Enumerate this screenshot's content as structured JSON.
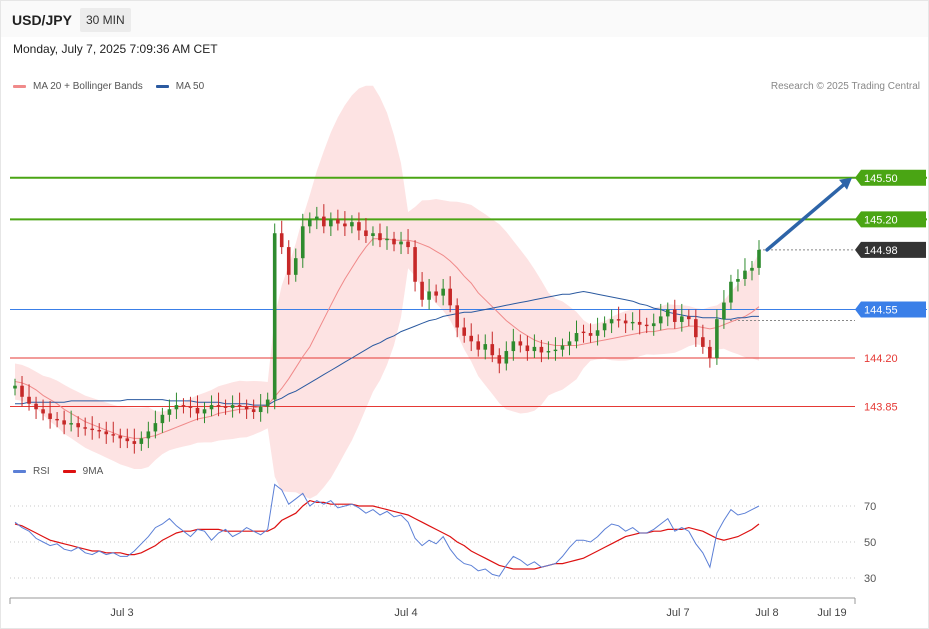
{
  "header": {
    "pair": "USD/JPY",
    "timeframe": "30 MIN"
  },
  "datetime": "Monday, July 7, 2025 7:09:36 AM CET",
  "legend_main": [
    {
      "label": "MA 20 + Bollinger Bands",
      "color": "#f08a8a"
    },
    {
      "label": "MA 50",
      "color": "#2b5aa0"
    }
  ],
  "legend_rsi": [
    {
      "label": "RSI",
      "color": "#5b7fd6"
    },
    {
      "label": "9MA",
      "color": "#dd1111"
    }
  ],
  "copyright": "Research © 2025 Trading Central",
  "colors": {
    "up": "#2e8b2e",
    "down": "#c62828",
    "resistance": "#4aa514",
    "pivot": "#3a7fe8",
    "support": "#e53935",
    "last": "#333333",
    "bands": "#fde3e3",
    "arrow": "#2d64a8"
  },
  "chart_data": [
    {
      "type": "candlestick",
      "symbol": "USD/JPY",
      "timeframe": "30 MIN",
      "ylim": [
        143.25,
        146.0
      ],
      "xlabels": [
        "Jul 3",
        "Jul 4",
        "Jul 7",
        "Jul 8",
        "Jul 19"
      ],
      "closes": [
        144.0,
        143.92,
        143.87,
        143.83,
        143.8,
        143.76,
        143.75,
        143.72,
        143.73,
        143.7,
        143.69,
        143.68,
        143.67,
        143.65,
        143.64,
        143.62,
        143.6,
        143.58,
        143.62,
        143.67,
        143.73,
        143.79,
        143.83,
        143.86,
        143.85,
        143.84,
        143.8,
        143.83,
        143.86,
        143.85,
        143.84,
        143.86,
        143.85,
        143.83,
        143.81,
        143.85,
        143.9,
        145.1,
        145.0,
        144.8,
        144.92,
        145.15,
        145.2,
        145.22,
        145.15,
        145.2,
        145.17,
        145.15,
        145.18,
        145.12,
        145.08,
        145.1,
        145.05,
        145.06,
        145.02,
        145.04,
        145.0,
        144.75,
        144.62,
        144.68,
        144.65,
        144.7,
        144.58,
        144.42,
        144.36,
        144.32,
        144.26,
        144.3,
        144.22,
        144.16,
        144.25,
        144.32,
        144.29,
        144.25,
        144.28,
        144.24,
        144.25,
        144.26,
        144.29,
        144.32,
        144.38,
        144.38,
        144.36,
        144.4,
        144.45,
        144.48,
        144.47,
        144.45,
        144.46,
        144.44,
        144.43,
        144.45,
        144.5,
        144.55,
        144.46,
        144.5,
        144.48,
        144.35,
        144.28,
        144.2,
        144.48,
        144.6,
        144.75,
        144.77,
        144.83,
        144.85,
        144.98
      ],
      "series": [
        {
          "name": "MA 20",
          "values": [
            144.03,
            144.02,
            144.0,
            143.97,
            143.93,
            143.9,
            143.87,
            143.83,
            143.8,
            143.77,
            143.74,
            143.72,
            143.7,
            143.68,
            143.66,
            143.64,
            143.63,
            143.62,
            143.62,
            143.63,
            143.64,
            143.66,
            143.68,
            143.7,
            143.72,
            143.74,
            143.76,
            143.77,
            143.78,
            143.8,
            143.81,
            143.82,
            143.83,
            143.83,
            143.84,
            143.85,
            143.86,
            143.92,
            143.98,
            144.05,
            144.13,
            144.21,
            144.28,
            144.38,
            144.48,
            144.58,
            144.68,
            144.77,
            144.85,
            144.93,
            145.0,
            145.06,
            145.06,
            145.06,
            145.05,
            145.05,
            145.05,
            145.04,
            145.02,
            145.0,
            144.97,
            144.94,
            144.9,
            144.85,
            144.79,
            144.74,
            144.67,
            144.62,
            144.57,
            144.52,
            144.47,
            144.43,
            144.39,
            144.36,
            144.33,
            144.31,
            144.3,
            144.29,
            144.29,
            144.29,
            144.29,
            144.3,
            144.31,
            144.32,
            144.33,
            144.34,
            144.35,
            144.36,
            144.37,
            144.38,
            144.39,
            144.39,
            144.4,
            144.41,
            144.41,
            144.42,
            144.43,
            144.43,
            144.42,
            144.41,
            144.42,
            144.44,
            144.46,
            144.48,
            144.5,
            144.53,
            144.57
          ]
        },
        {
          "name": "MA 50",
          "values": [
            143.87,
            143.87,
            143.88,
            143.88,
            143.88,
            143.88,
            143.88,
            143.88,
            143.89,
            143.89,
            143.89,
            143.89,
            143.89,
            143.89,
            143.89,
            143.89,
            143.9,
            143.9,
            143.9,
            143.9,
            143.9,
            143.9,
            143.89,
            143.89,
            143.89,
            143.89,
            143.88,
            143.88,
            143.88,
            143.88,
            143.87,
            143.87,
            143.87,
            143.87,
            143.86,
            143.86,
            143.86,
            143.89,
            143.91,
            143.94,
            143.96,
            143.99,
            144.02,
            144.05,
            144.08,
            144.11,
            144.14,
            144.17,
            144.2,
            144.23,
            144.26,
            144.29,
            144.31,
            144.34,
            144.36,
            144.39,
            144.41,
            144.43,
            144.45,
            144.47,
            144.48,
            144.5,
            144.51,
            144.52,
            144.53,
            144.53,
            144.54,
            144.55,
            144.56,
            144.57,
            144.58,
            144.59,
            144.6,
            144.61,
            144.62,
            144.63,
            144.64,
            144.65,
            144.66,
            144.66,
            144.67,
            144.68,
            144.67,
            144.66,
            144.65,
            144.64,
            144.63,
            144.62,
            144.61,
            144.59,
            144.58,
            144.56,
            144.55,
            144.53,
            144.52,
            144.51,
            144.5,
            144.5,
            144.49,
            144.49,
            144.49,
            144.48,
            144.48,
            144.49,
            144.49,
            144.5,
            144.5
          ]
        }
      ],
      "levels": [
        {
          "value": 145.5,
          "label": "145.50",
          "kind": "resistance"
        },
        {
          "value": 145.2,
          "label": "145.20",
          "kind": "resistance"
        },
        {
          "value": 144.98,
          "label": "144.98",
          "kind": "last"
        },
        {
          "value": 144.55,
          "label": "144.55",
          "kind": "pivot"
        },
        {
          "value": 144.2,
          "label": "144.20",
          "kind": "support"
        },
        {
          "value": 143.85,
          "label": "143.85",
          "kind": "support"
        }
      ],
      "forecast_arrow": {
        "from": 144.98,
        "to": 145.5
      }
    },
    {
      "type": "line",
      "name": "RSI",
      "ylim": [
        20,
        80
      ],
      "ticks": [
        "70",
        "50",
        "30"
      ],
      "series": [
        {
          "name": "RSI",
          "values": [
            61,
            58,
            56,
            52,
            50,
            48,
            49,
            46,
            45,
            47,
            44,
            43,
            45,
            43,
            44,
            42,
            42,
            45,
            49,
            53,
            58,
            60,
            63,
            59,
            56,
            53,
            57,
            56,
            51,
            55,
            57,
            53,
            55,
            58,
            56,
            54,
            57,
            82,
            79,
            71,
            74,
            77,
            70,
            73,
            71,
            73,
            69,
            70,
            71,
            69,
            66,
            68,
            65,
            67,
            64,
            65,
            61,
            52,
            48,
            51,
            49,
            53,
            46,
            41,
            38,
            37,
            34,
            35,
            32,
            31,
            37,
            42,
            40,
            37,
            39,
            36,
            37,
            38,
            42,
            47,
            51,
            51,
            50,
            53,
            57,
            60,
            59,
            56,
            58,
            55,
            55,
            57,
            60,
            63,
            56,
            58,
            56,
            49,
            44,
            36,
            55,
            62,
            68,
            65,
            66,
            68,
            70
          ]
        },
        {
          "name": "9MA",
          "values": [
            60,
            59,
            57,
            55,
            53,
            51,
            50,
            49,
            48,
            47,
            46,
            45,
            45,
            44,
            44,
            44,
            43,
            43,
            44,
            46,
            48,
            51,
            53,
            55,
            56,
            56,
            57,
            57,
            57,
            57,
            56,
            56,
            56,
            56,
            56,
            56,
            56,
            58,
            62,
            64,
            66,
            70,
            73,
            72,
            72,
            71,
            71,
            71,
            71,
            70,
            70,
            70,
            69,
            68,
            67,
            66,
            65,
            63,
            61,
            59,
            57,
            55,
            53,
            50,
            48,
            45,
            43,
            41,
            39,
            37,
            36,
            35,
            35,
            35,
            35,
            36,
            37,
            38,
            38,
            39,
            40,
            41,
            43,
            45,
            47,
            49,
            51,
            53,
            54,
            55,
            55,
            56,
            56,
            57,
            57,
            57,
            58,
            57,
            56,
            54,
            52,
            51,
            52,
            53,
            55,
            57,
            60
          ]
        }
      ]
    }
  ]
}
